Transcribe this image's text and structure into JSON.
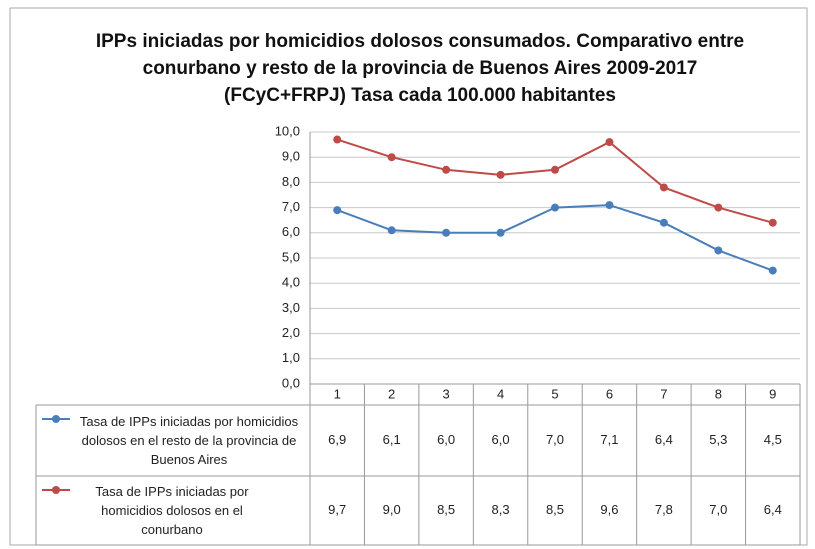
{
  "chart_data": {
    "type": "line",
    "title": "IPPs iniciadas por homicidios dolosos consumados. Comparativo entre conurbano y resto de la provincia de Buenos Aires 2009-2017 (FCyC+FRPJ) Tasa cada 100.000 habitantes",
    "categories": [
      1,
      2,
      3,
      4,
      5,
      6,
      7,
      8,
      9
    ],
    "series": [
      {
        "name": "Tasa de IPPs iniciadas por homicidios dolosos en el resto de la provincia de Buenos Aires",
        "color": "#4a7ebb",
        "values": [
          6.9,
          6.1,
          6.0,
          6.0,
          7.0,
          7.1,
          6.4,
          5.3,
          4.5
        ],
        "value_labels": [
          "6,9",
          "6,1",
          "6,0",
          "6,0",
          "7,0",
          "7,1",
          "6,4",
          "5,3",
          "4,5"
        ]
      },
      {
        "name": "Tasa de IPPs iniciadas por homicidios dolosos en el conurbano",
        "color": "#be4b48",
        "values": [
          9.7,
          9.0,
          8.5,
          8.3,
          8.5,
          9.6,
          7.8,
          7.0,
          6.4
        ],
        "value_labels": [
          "9,7",
          "9,0",
          "8,5",
          "8,3",
          "8,5",
          "9,6",
          "7,8",
          "7,0",
          "6,4"
        ]
      }
    ],
    "ylim": [
      0,
      10
    ],
    "yticks": [
      {
        "value": 0,
        "label": "0,0"
      },
      {
        "value": 1,
        "label": "1,0"
      },
      {
        "value": 2,
        "label": "2,0"
      },
      {
        "value": 3,
        "label": "3,0"
      },
      {
        "value": 4,
        "label": "4,0"
      },
      {
        "value": 5,
        "label": "5,0"
      },
      {
        "value": 6,
        "label": "6,0"
      },
      {
        "value": 7,
        "label": "7,0"
      },
      {
        "value": 8,
        "label": "8,0"
      },
      {
        "value": 9,
        "label": "9,0"
      },
      {
        "value": 10,
        "label": "10,0"
      }
    ],
    "grid": true
  }
}
